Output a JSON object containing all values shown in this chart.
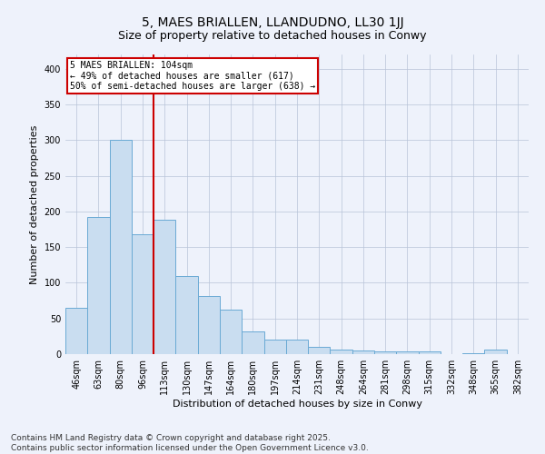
{
  "title1": "5, MAES BRIALLEN, LLANDUDNO, LL30 1JJ",
  "title2": "Size of property relative to detached houses in Conwy",
  "xlabel": "Distribution of detached houses by size in Conwy",
  "ylabel": "Number of detached properties",
  "categories": [
    "46sqm",
    "63sqm",
    "80sqm",
    "96sqm",
    "113sqm",
    "130sqm",
    "147sqm",
    "164sqm",
    "180sqm",
    "197sqm",
    "214sqm",
    "231sqm",
    "248sqm",
    "264sqm",
    "281sqm",
    "298sqm",
    "315sqm",
    "332sqm",
    "348sqm",
    "365sqm",
    "382sqm"
  ],
  "values": [
    65,
    192,
    300,
    168,
    188,
    109,
    81,
    62,
    32,
    20,
    20,
    10,
    7,
    5,
    4,
    4,
    4,
    0,
    1,
    7,
    0
  ],
  "bar_color": "#c9ddf0",
  "bar_edge_color": "#6aaad4",
  "vline_x": 3.5,
  "vline_color": "#cc0000",
  "annotation_text": "5 MAES BRIALLEN: 104sqm\n← 49% of detached houses are smaller (617)\n50% of semi-detached houses are larger (638) →",
  "annotation_box_color": "#cc0000",
  "ylim": [
    0,
    420
  ],
  "yticks": [
    0,
    50,
    100,
    150,
    200,
    250,
    300,
    350,
    400
  ],
  "footnote1": "Contains HM Land Registry data © Crown copyright and database right 2025.",
  "footnote2": "Contains public sector information licensed under the Open Government Licence v3.0.",
  "bg_color": "#eef2fb",
  "plot_bg_color": "#eef2fb",
  "title_fontsize": 10,
  "subtitle_fontsize": 9,
  "axis_label_fontsize": 8,
  "tick_fontsize": 7,
  "footnote_fontsize": 6.5
}
